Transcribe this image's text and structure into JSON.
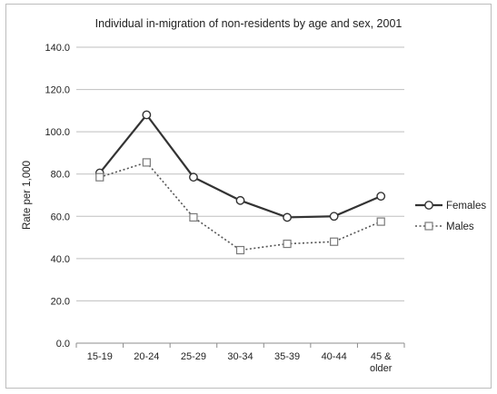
{
  "chart_data": {
    "type": "line",
    "title": "Individual in-migration of non-residents by age and sex, 2001",
    "xlabel": "",
    "ylabel": "Rate per 1,000",
    "categories": [
      [
        "15-19"
      ],
      [
        "20-24"
      ],
      [
        "25-29"
      ],
      [
        "30-34"
      ],
      [
        "35-39"
      ],
      [
        "40-44"
      ],
      [
        "45 &",
        "older"
      ]
    ],
    "ylim": [
      0,
      140
    ],
    "yticks": [
      "0.0",
      "20.0",
      "40.0",
      "60.0",
      "80.0",
      "100.0",
      "120.0",
      "140.0"
    ],
    "grid": true,
    "legend_position": "right",
    "series": [
      {
        "name": "Females",
        "values": [
          80.5,
          108.0,
          78.5,
          67.5,
          59.5,
          60.0,
          69.5
        ],
        "color": "#333333",
        "line_style": "solid",
        "marker": "circle"
      },
      {
        "name": "Males",
        "values": [
          78.5,
          85.5,
          59.5,
          44.0,
          47.0,
          48.0,
          57.5
        ],
        "color": "#555555",
        "line_style": "dotted",
        "marker": "square"
      }
    ]
  }
}
